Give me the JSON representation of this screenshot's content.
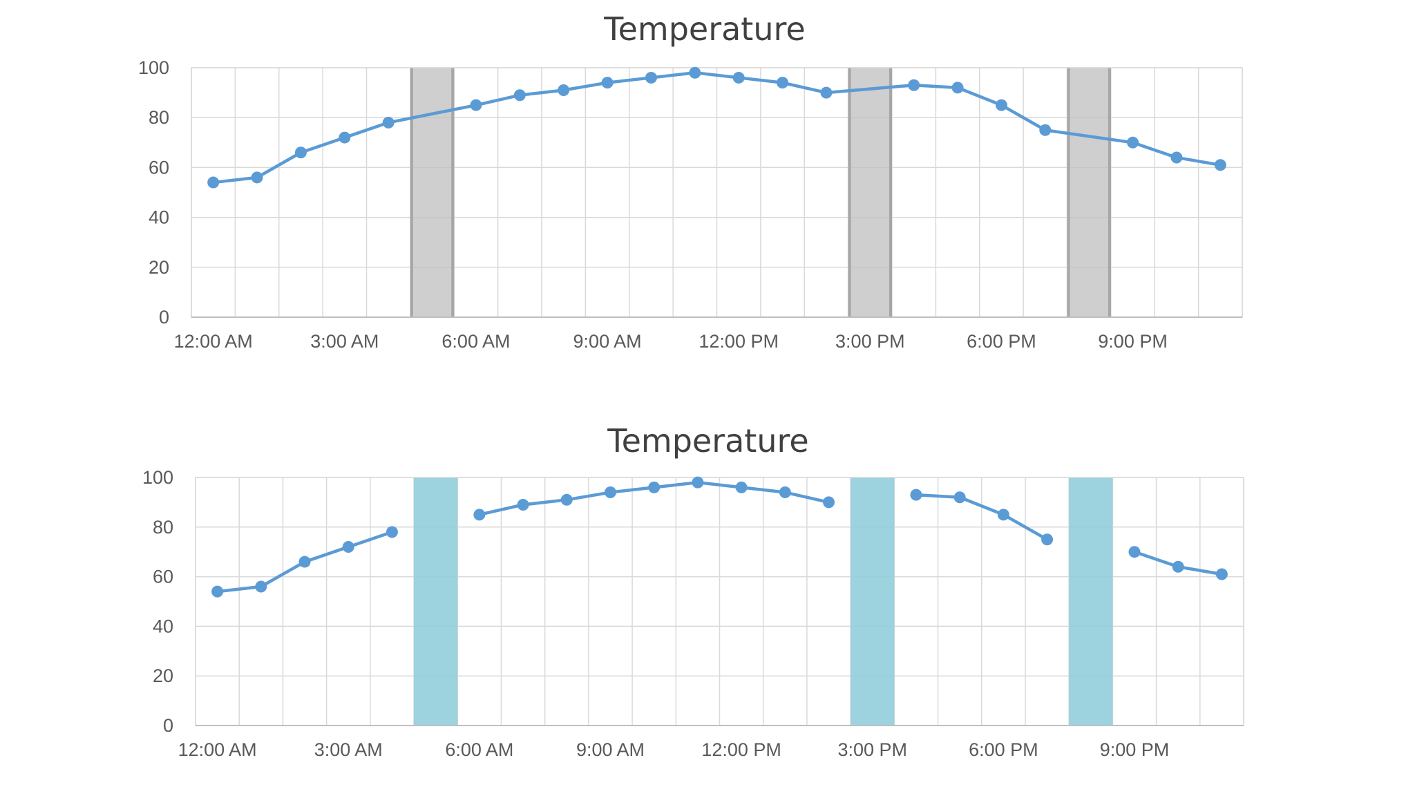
{
  "chart_data": [
    {
      "type": "line",
      "title": "Temperature",
      "x": [
        "12:00 AM",
        "1:00 AM",
        "2:00 AM",
        "3:00 AM",
        "4:00 AM",
        "5:00 AM",
        "6:00 AM",
        "7:00 AM",
        "8:00 AM",
        "9:00 AM",
        "10:00 AM",
        "11:00 AM",
        "12:00 PM",
        "1:00 PM",
        "2:00 PM",
        "3:00 PM",
        "4:00 PM",
        "5:00 PM",
        "6:00 PM",
        "7:00 PM",
        "8:00 PM",
        "9:00 PM",
        "10:00 PM",
        "11:00 PM"
      ],
      "x_tick_labels": [
        "12:00 AM",
        "3:00 AM",
        "6:00 AM",
        "9:00 AM",
        "12:00 PM",
        "3:00 PM",
        "6:00 PM",
        "9:00 PM"
      ],
      "series": [
        {
          "values": [
            54,
            56,
            66,
            72,
            78,
            null,
            85,
            89,
            91,
            94,
            96,
            98,
            96,
            94,
            90,
            null,
            93,
            92,
            85,
            75,
            null,
            70,
            64,
            61
          ],
          "connect_gaps": true
        }
      ],
      "bands": [
        {
          "start": "5:00 AM",
          "end": "5:00 AM"
        },
        {
          "start": "3:00 PM",
          "end": "3:00 PM"
        },
        {
          "start": "8:00 PM",
          "end": "8:00 PM"
        }
      ],
      "ylim": [
        0,
        100
      ],
      "y_ticks": [
        0,
        20,
        40,
        60,
        80,
        100
      ],
      "grid": true,
      "line_color": "#5b9bd5",
      "band_color": "#bfbfbf",
      "xlabel": "",
      "ylabel": ""
    },
    {
      "type": "line",
      "title": "Temperature",
      "x": [
        "12:00 AM",
        "1:00 AM",
        "2:00 AM",
        "3:00 AM",
        "4:00 AM",
        "5:00 AM",
        "6:00 AM",
        "7:00 AM",
        "8:00 AM",
        "9:00 AM",
        "10:00 AM",
        "11:00 AM",
        "12:00 PM",
        "1:00 PM",
        "2:00 PM",
        "3:00 PM",
        "4:00 PM",
        "5:00 PM",
        "6:00 PM",
        "7:00 PM",
        "8:00 PM",
        "9:00 PM",
        "10:00 PM",
        "11:00 PM"
      ],
      "x_tick_labels": [
        "12:00 AM",
        "3:00 AM",
        "6:00 AM",
        "9:00 AM",
        "12:00 PM",
        "3:00 PM",
        "6:00 PM",
        "9:00 PM"
      ],
      "series": [
        {
          "values": [
            54,
            56,
            66,
            72,
            78,
            null,
            85,
            89,
            91,
            94,
            96,
            98,
            96,
            94,
            90,
            null,
            93,
            92,
            85,
            75,
            null,
            70,
            64,
            61
          ],
          "connect_gaps": false
        }
      ],
      "bands": [
        {
          "start": "5:00 AM",
          "end": "5:00 AM"
        },
        {
          "start": "3:00 PM",
          "end": "3:00 PM"
        },
        {
          "start": "8:00 PM",
          "end": "8:00 PM"
        }
      ],
      "ylim": [
        0,
        100
      ],
      "y_ticks": [
        0,
        20,
        40,
        60,
        80,
        100
      ],
      "grid": true,
      "line_color": "#5b9bd5",
      "band_color": "#92cddc",
      "xlabel": "",
      "ylabel": ""
    }
  ]
}
